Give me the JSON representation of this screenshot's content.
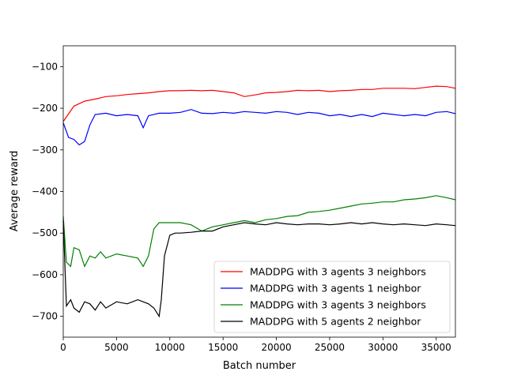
{
  "chart_data": {
    "type": "line",
    "title": "",
    "xlabel": "Batch number",
    "ylabel": "Average reward",
    "xlim": [
      0,
      36800
    ],
    "ylim": [
      -750,
      -50
    ],
    "xticks": [
      0,
      5000,
      10000,
      15000,
      20000,
      25000,
      30000,
      35000
    ],
    "yticks": [
      -700,
      -600,
      -500,
      -400,
      -300,
      -200,
      -100
    ],
    "xtick_labels": [
      "0",
      "5000",
      "10000",
      "15000",
      "20000",
      "25000",
      "30000",
      "35000"
    ],
    "ytick_labels": [
      "−700",
      "−600",
      "−500",
      "−400",
      "−300",
      "−200",
      "−100"
    ],
    "grid": false,
    "legend_position": "bottom-right",
    "series": [
      {
        "name": "MADDPG with 3 agents 3 neighbors",
        "color": "#ff0000",
        "x": [
          0,
          1000,
          2000,
          3000,
          4000,
          5000,
          6000,
          7000,
          8000,
          9000,
          10000,
          11000,
          12000,
          13000,
          14000,
          15000,
          16000,
          17000,
          18000,
          19000,
          20000,
          21000,
          22000,
          23000,
          24000,
          25000,
          26000,
          27000,
          28000,
          29000,
          30000,
          31000,
          32000,
          33000,
          34000,
          35000,
          36000,
          36800
        ],
        "y": [
          -232,
          -195,
          -183,
          -178,
          -172,
          -170,
          -167,
          -165,
          -163,
          -160,
          -158,
          -158,
          -157,
          -158,
          -157,
          -160,
          -163,
          -172,
          -168,
          -163,
          -162,
          -160,
          -157,
          -158,
          -157,
          -160,
          -158,
          -157,
          -155,
          -155,
          -152,
          -152,
          -152,
          -153,
          -150,
          -147,
          -148,
          -152
        ]
      },
      {
        "name": "MADDPG with 3 agents 1 neighbor",
        "color": "#0000ff",
        "x": [
          0,
          500,
          1000,
          1500,
          2000,
          2500,
          3000,
          4000,
          5000,
          6000,
          7000,
          7500,
          8000,
          9000,
          10000,
          11000,
          12000,
          13000,
          14000,
          15000,
          16000,
          17000,
          18000,
          19000,
          20000,
          21000,
          22000,
          23000,
          24000,
          25000,
          26000,
          27000,
          28000,
          29000,
          30000,
          31000,
          32000,
          33000,
          34000,
          35000,
          36000,
          36800
        ],
        "y": [
          -235,
          -270,
          -275,
          -288,
          -280,
          -240,
          -215,
          -212,
          -218,
          -215,
          -218,
          -247,
          -218,
          -212,
          -212,
          -210,
          -203,
          -212,
          -213,
          -210,
          -212,
          -208,
          -210,
          -212,
          -208,
          -210,
          -215,
          -210,
          -212,
          -218,
          -215,
          -220,
          -215,
          -220,
          -212,
          -215,
          -218,
          -215,
          -218,
          -210,
          -208,
          -213
        ]
      },
      {
        "name": "MADDPG with 3 agents 3 neighbors",
        "color": "#008000",
        "x": [
          0,
          300,
          700,
          1000,
          1500,
          2000,
          2500,
          3000,
          3500,
          4000,
          5000,
          6000,
          7000,
          7500,
          8000,
          8500,
          9000,
          10000,
          11000,
          12000,
          13000,
          14000,
          15000,
          16000,
          17000,
          18000,
          19000,
          20000,
          21000,
          22000,
          23000,
          24000,
          25000,
          26000,
          27000,
          28000,
          29000,
          30000,
          31000,
          32000,
          33000,
          34000,
          35000,
          36000,
          36800
        ],
        "y": [
          -460,
          -570,
          -580,
          -535,
          -540,
          -580,
          -555,
          -560,
          -545,
          -560,
          -550,
          -555,
          -560,
          -580,
          -555,
          -490,
          -475,
          -475,
          -475,
          -480,
          -495,
          -485,
          -480,
          -475,
          -470,
          -475,
          -468,
          -465,
          -460,
          -458,
          -450,
          -448,
          -445,
          -440,
          -435,
          -430,
          -428,
          -425,
          -425,
          -420,
          -418,
          -415,
          -410,
          -415,
          -420
        ]
      },
      {
        "name": "MADDPG with 5 agents 2 neighbor",
        "color": "#000000",
        "x": [
          0,
          300,
          700,
          1000,
          1500,
          2000,
          2500,
          3000,
          3500,
          4000,
          5000,
          6000,
          7000,
          8000,
          8500,
          9000,
          9200,
          9500,
          10000,
          10500,
          11000,
          12000,
          13000,
          14000,
          15000,
          16000,
          17000,
          18000,
          19000,
          20000,
          21000,
          22000,
          23000,
          24000,
          25000,
          26000,
          27000,
          28000,
          29000,
          30000,
          31000,
          32000,
          33000,
          34000,
          35000,
          36000,
          36800
        ],
        "y": [
          -470,
          -675,
          -660,
          -680,
          -690,
          -665,
          -670,
          -685,
          -665,
          -680,
          -665,
          -670,
          -660,
          -670,
          -680,
          -700,
          -660,
          -555,
          -505,
          -500,
          -500,
          -498,
          -495,
          -495,
          -485,
          -480,
          -475,
          -478,
          -480,
          -475,
          -478,
          -480,
          -478,
          -478,
          -480,
          -478,
          -475,
          -478,
          -475,
          -478,
          -480,
          -478,
          -480,
          -482,
          -478,
          -480,
          -482
        ]
      }
    ]
  }
}
